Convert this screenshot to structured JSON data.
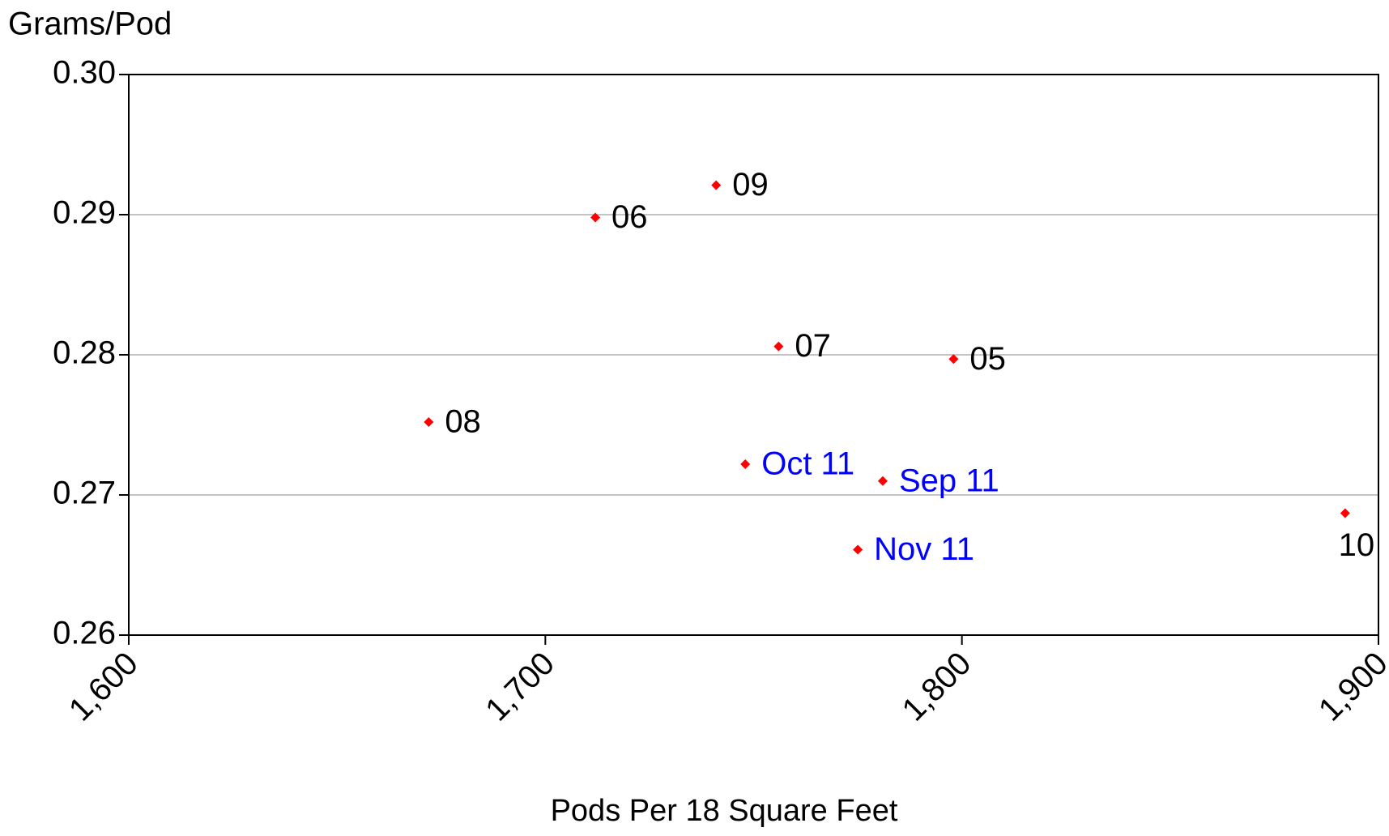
{
  "chart_data": {
    "type": "scatter",
    "y_axis_label": "Grams/Pod",
    "x_axis_label": "Pods Per 18 Square Feet",
    "x": [
      1741,
      1712,
      1756,
      1798,
      1672,
      1748,
      1781,
      1775,
      1892
    ],
    "values": [
      0.2921,
      0.2898,
      0.2806,
      0.2797,
      0.2752,
      0.2722,
      0.271,
      0.2661,
      0.2687
    ],
    "labels": [
      "09",
      "06",
      "07",
      "05",
      "08",
      "Oct 11",
      "Sep 11",
      "Nov 11",
      "10"
    ],
    "color": "#ff0000",
    "label_colors": [
      "#000000",
      "#000000",
      "#000000",
      "#000000",
      "#000000",
      "#0000ff",
      "#0000ff",
      "#0000ff",
      "#000000"
    ],
    "xlim": [
      1600,
      1900
    ],
    "xticks": [
      {
        "value": 1600,
        "label": "1,600"
      },
      {
        "value": 1700,
        "label": "1,700"
      },
      {
        "value": 1800,
        "label": "1,800"
      },
      {
        "value": 1900,
        "label": "1,900"
      }
    ],
    "ylim": [
      0.26,
      0.3
    ],
    "yticks": [
      0.26,
      0.27,
      0.28,
      0.29,
      {
        "value": 0.3,
        "label": "0.30"
      }
    ],
    "grid": true
  }
}
